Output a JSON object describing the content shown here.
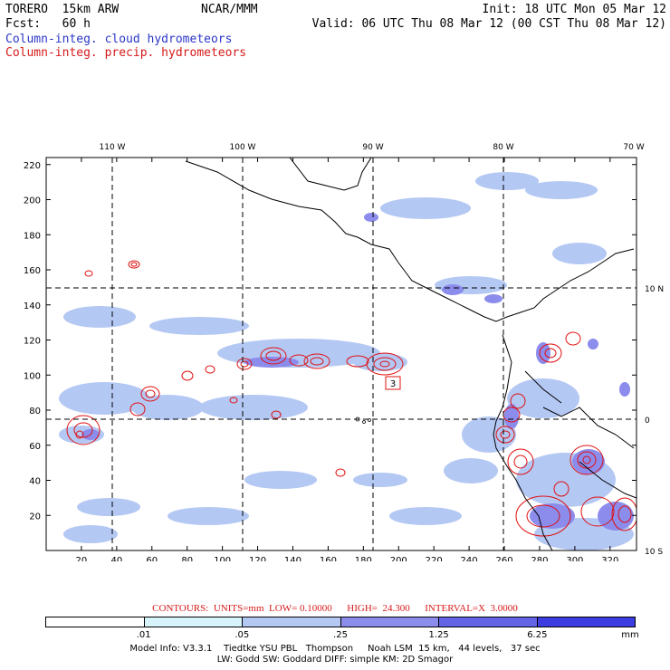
{
  "header": {
    "model": "TORERO  15km ARW",
    "center": "NCAR/MMM",
    "init": "Init: 18 UTC Mon 05 Mar 12",
    "fcst": "Fcst:   60 h",
    "valid": "Valid: 06 UTC Thu 08 Mar 12 (00 CST Thu 08 Mar 12)",
    "field1": "Column-integ. cloud hydrometeors",
    "field2": "Column-integ. precip. hydrometeors"
  },
  "axes": {
    "x_ticks": [
      "20",
      "40",
      "60",
      "80",
      "100",
      "120",
      "140",
      "160",
      "180",
      "200",
      "220",
      "240",
      "260",
      "280",
      "300",
      "320"
    ],
    "y_ticks": [
      "20",
      "40",
      "60",
      "80",
      "100",
      "120",
      "140",
      "160",
      "180",
      "200",
      "220"
    ],
    "lon_labels": [
      "110 W",
      "100 W",
      "90 W",
      "80 W",
      "70 W"
    ],
    "lat_labels": [
      "10 N",
      "0",
      "10 S"
    ],
    "xlim": [
      0,
      335
    ],
    "ylim": [
      0,
      224
    ]
  },
  "contour_box": "3",
  "contours_text": "CONTOURS:  UNITS=mm  LOW= 0.10000      HIGH=  24.300      INTERVAL=X  3.0000",
  "colorbar": {
    "colors": [
      "#ffffff",
      "#d8f4fb",
      "#b4c8f4",
      "#8c8cec",
      "#6464e6",
      "#3c3ce0"
    ],
    "labels": [
      ".01",
      ".05",
      ".25",
      "1.25",
      "6.25",
      "mm"
    ]
  },
  "model_info": {
    "line1": "Model Info: V3.3.1    Tiedtke YSU PBL   Thompson     Noah LSM  15 km,   44 levels,   37 sec",
    "line2": "LW: Godd SW: Goddard DIFF: simple KM: 2D Smagor"
  }
}
